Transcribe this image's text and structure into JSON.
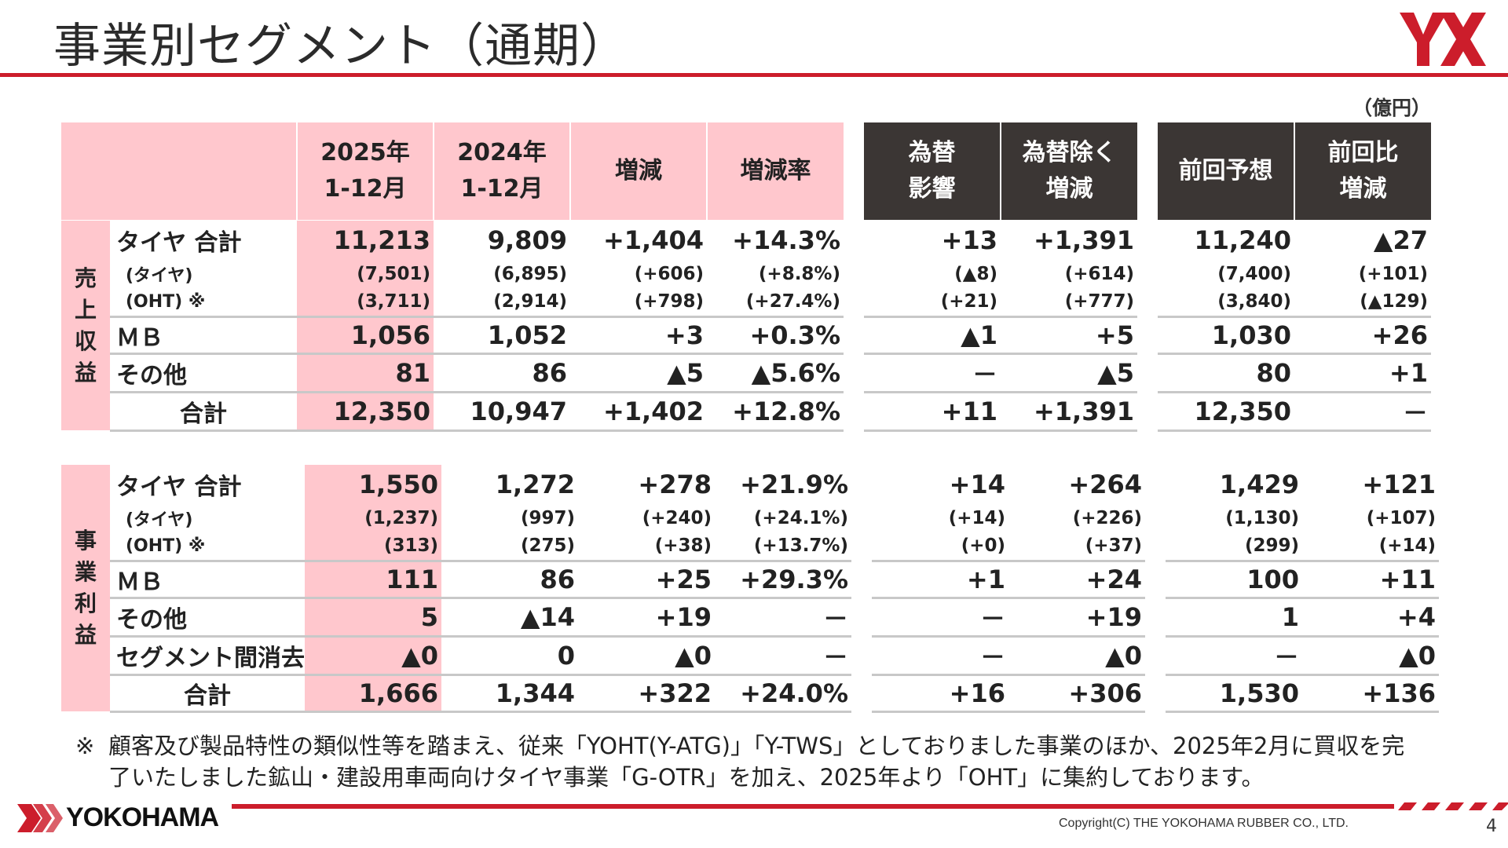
{
  "header": {
    "title": "事業別セグメント（通期）",
    "unit": "（億円）"
  },
  "colors": {
    "accent": "#cc1d2b",
    "pink": "#ffc7cd",
    "dark": "#3b3634"
  },
  "table_head": {
    "col2025": [
      "2025年",
      "1-12月"
    ],
    "col2024": [
      "2024年",
      "1-12月"
    ],
    "change": "増減",
    "rate": "増減率",
    "fx": [
      "為替",
      "影響"
    ],
    "exfx": [
      "為替除く",
      "増減"
    ],
    "forecast": "前回予想",
    "vs_forecast": [
      "前回比",
      "増減"
    ]
  },
  "revenue": {
    "side_label": [
      "売",
      "上",
      "収",
      "益"
    ],
    "rows": [
      {
        "label": "タイヤ 合計",
        "kind": "main",
        "values": [
          "11,213",
          "9,809",
          "+1,404",
          "+14.3%",
          "+13",
          "+1,391",
          "11,240",
          "▲27"
        ]
      },
      {
        "label": "(タイヤ)",
        "kind": "sub",
        "values": [
          "(7,501)",
          "(6,895)",
          "(+606)",
          "(+8.8%)",
          "(▲8)",
          "(+614)",
          "(7,400)",
          "(+101)"
        ]
      },
      {
        "label": "(OHT) ※",
        "kind": "sub",
        "values": [
          "(3,711)",
          "(2,914)",
          "(+798)",
          "(+27.4%)",
          "(+21)",
          "(+777)",
          "(3,840)",
          "(▲129)"
        ]
      },
      {
        "label": "ＭＢ",
        "kind": "std",
        "values": [
          "1,056",
          "1,052",
          "+3",
          "+0.3%",
          "▲1",
          "+5",
          "1,030",
          "+26"
        ]
      },
      {
        "label": "その他",
        "kind": "std",
        "values": [
          "81",
          "86",
          "▲5",
          "▲5.6%",
          "－",
          "▲5",
          "80",
          "+1"
        ]
      },
      {
        "label": "合計",
        "kind": "total",
        "values": [
          "12,350",
          "10,947",
          "+1,402",
          "+12.8%",
          "+11",
          "+1,391",
          "12,350",
          "－"
        ]
      }
    ]
  },
  "profit": {
    "side_label": [
      "事",
      "業",
      "利",
      "益"
    ],
    "rows": [
      {
        "label": "タイヤ 合計",
        "kind": "main",
        "values": [
          "1,550",
          "1,272",
          "+278",
          "+21.9%",
          "+14",
          "+264",
          "1,429",
          "+121"
        ]
      },
      {
        "label": "(タイヤ)",
        "kind": "sub",
        "values": [
          "(1,237)",
          "(997)",
          "(+240)",
          "(+24.1%)",
          "(+14)",
          "(+226)",
          "(1,130)",
          "(+107)"
        ]
      },
      {
        "label": "(OHT) ※",
        "kind": "sub",
        "values": [
          "(313)",
          "(275)",
          "(+38)",
          "(+13.7%)",
          "(+0)",
          "(+37)",
          "(299)",
          "(+14)"
        ]
      },
      {
        "label": "ＭＢ",
        "kind": "std",
        "values": [
          "111",
          "86",
          "+25",
          "+29.3%",
          "+1",
          "+24",
          "100",
          "+11"
        ]
      },
      {
        "label": "その他",
        "kind": "std",
        "values": [
          "5",
          "▲14",
          "+19",
          "－",
          "－",
          "+19",
          "1",
          "+4"
        ]
      },
      {
        "label": "セグメント間消去",
        "kind": "std",
        "values": [
          "▲0",
          "0",
          "▲0",
          "－",
          "－",
          "▲0",
          "－",
          "▲0"
        ]
      },
      {
        "label": "合計",
        "kind": "total",
        "values": [
          "1,666",
          "1,344",
          "+322",
          "+24.0%",
          "+16",
          "+306",
          "1,530",
          "+136"
        ]
      }
    ]
  },
  "footnote": {
    "mark": "※",
    "text": "顧客及び製品特性の類似性等を踏まえ、従来「YOHT(Y-ATG)」「Y-TWS」としておりました事業のほか、2025年2月に買収を完了いたしました鉱山・建設用車両向けタイヤ事業「G-OTR」を加え、2025年より「OHT」に集約しております。"
  },
  "footer": {
    "brand": "YOKOHAMA",
    "copyright": "Copyright(C) THE YOKOHAMA RUBBER CO., LTD.",
    "page": "4"
  }
}
